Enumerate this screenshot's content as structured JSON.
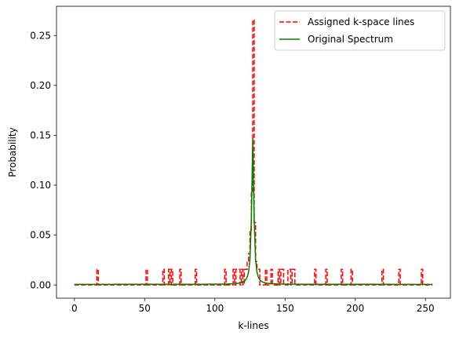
{
  "chart_data": {
    "type": "line",
    "title": "",
    "xlabel": "k-lines",
    "ylabel": "Probability",
    "xlim": [
      -12.75,
      267.75
    ],
    "ylim": [
      -0.0133,
      0.2793
    ],
    "xticks": [
      0,
      50,
      100,
      150,
      200,
      250
    ],
    "yticks": [
      0.0,
      0.05,
      0.1,
      0.15,
      0.2,
      0.25
    ],
    "xtick_labels": [
      "0",
      "50",
      "100",
      "150",
      "200",
      "250"
    ],
    "ytick_labels": [
      "0.00",
      "0.05",
      "0.10",
      "0.15",
      "0.20",
      "0.25"
    ],
    "grid": false,
    "legend_position": "upper-right",
    "series": [
      {
        "name": "Assigned k-space lines",
        "color": "#ff0000",
        "style": "dashed",
        "kind": "step",
        "n": 256,
        "spikes": [
          {
            "x": 16,
            "y": 0.0156
          },
          {
            "x": 51,
            "y": 0.0156
          },
          {
            "x": 63,
            "y": 0.0156
          },
          {
            "x": 67,
            "y": 0.0156
          },
          {
            "x": 69,
            "y": 0.0156
          },
          {
            "x": 75,
            "y": 0.0156
          },
          {
            "x": 86,
            "y": 0.0156
          },
          {
            "x": 107,
            "y": 0.0156
          },
          {
            "x": 113,
            "y": 0.0156
          },
          {
            "x": 115,
            "y": 0.0156
          },
          {
            "x": 116,
            "y": 0.0156
          },
          {
            "x": 117,
            "y": 0.0156
          },
          {
            "x": 119,
            "y": 0.0156
          },
          {
            "x": 121,
            "y": 0.0156
          },
          {
            "x": 122,
            "y": 0.0156
          },
          {
            "x": 123,
            "y": 0.0234
          },
          {
            "x": 124,
            "y": 0.0313
          },
          {
            "x": 125,
            "y": 0.0547
          },
          {
            "x": 126,
            "y": 0.0938
          },
          {
            "x": 127,
            "y": 0.2656
          },
          {
            "x": 128,
            "y": 0.0625
          },
          {
            "x": 129,
            "y": 0.0234
          },
          {
            "x": 130,
            "y": 0.0156
          },
          {
            "x": 131,
            "y": 0.0156
          },
          {
            "x": 136,
            "y": 0.0156
          },
          {
            "x": 140,
            "y": 0.0156
          },
          {
            "x": 145,
            "y": 0.0156
          },
          {
            "x": 147,
            "y": 0.0156
          },
          {
            "x": 148,
            "y": 0.0156
          },
          {
            "x": 152,
            "y": 0.0156
          },
          {
            "x": 153,
            "y": 0.0156
          },
          {
            "x": 155,
            "y": 0.0156
          },
          {
            "x": 156,
            "y": 0.0156
          },
          {
            "x": 171,
            "y": 0.0156
          },
          {
            "x": 179,
            "y": 0.0156
          },
          {
            "x": 190,
            "y": 0.0156
          },
          {
            "x": 197,
            "y": 0.0156
          },
          {
            "x": 219,
            "y": 0.0156
          },
          {
            "x": 231,
            "y": 0.0156
          },
          {
            "x": 247,
            "y": 0.0156
          }
        ]
      },
      {
        "name": "Original Spectrum",
        "color": "#008000",
        "style": "solid",
        "kind": "line",
        "x_range": [
          0,
          255
        ],
        "peak_x": 127,
        "peak_y": 0.147,
        "baseline_y": 0.0006,
        "half_width": 0.9
      }
    ]
  }
}
